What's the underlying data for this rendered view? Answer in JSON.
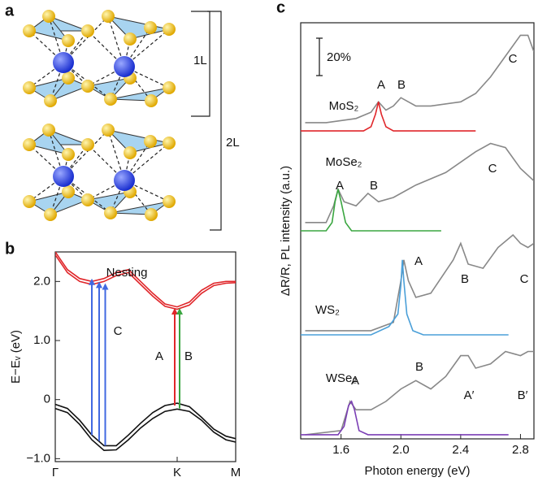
{
  "panel_a": {
    "label": "a",
    "layers": [
      "1L",
      "2L"
    ]
  },
  "chart_data": [
    {
      "type": "line",
      "label": "b",
      "ylabel": "E−Eᵥ (eV)",
      "xlim": [
        0,
        1.48
      ],
      "xticks": [
        {
          "value": 0,
          "label": "Γ"
        },
        {
          "value": 1,
          "label": "K"
        },
        {
          "value": 1.48,
          "label": "M"
        }
      ],
      "ylim": [
        -1.05,
        2.5
      ],
      "yticks": [
        {
          "value": -1,
          "label": "−1.0"
        },
        0,
        {
          "value": 1,
          "label": "1.0"
        },
        {
          "value": 2,
          "label": "2.0"
        }
      ],
      "x": [
        0,
        0.1,
        0.2,
        0.3,
        0.4,
        0.5,
        0.6,
        0.7,
        0.8,
        0.9,
        1.0,
        1.1,
        1.2,
        1.3,
        1.4,
        1.48
      ],
      "series": [
        {
          "color": "#e0262a",
          "values": [
            2.5,
            2.2,
            2.05,
            2.0,
            2.05,
            2.15,
            2.2,
            2.0,
            1.8,
            1.62,
            1.57,
            1.65,
            1.85,
            1.97,
            2.0,
            2.0
          ]
        },
        {
          "color": "#e0262a",
          "values": [
            2.45,
            2.15,
            2.0,
            1.95,
            2.0,
            2.1,
            2.15,
            1.95,
            1.75,
            1.58,
            1.53,
            1.6,
            1.8,
            1.93,
            1.97,
            1.98
          ]
        },
        {
          "color": "#111111",
          "values": [
            -0.08,
            -0.15,
            -0.35,
            -0.6,
            -0.78,
            -0.78,
            -0.6,
            -0.4,
            -0.22,
            -0.1,
            -0.06,
            -0.12,
            -0.3,
            -0.5,
            -0.62,
            -0.66
          ]
        },
        {
          "color": "#111111",
          "values": [
            -0.15,
            -0.22,
            -0.42,
            -0.68,
            -0.86,
            -0.85,
            -0.68,
            -0.48,
            -0.32,
            -0.2,
            -0.16,
            -0.2,
            -0.35,
            -0.55,
            -0.68,
            -0.72
          ]
        }
      ],
      "transitions": [
        {
          "color": "#4169e1",
          "x": 0.3,
          "y": [
            -0.6,
            2.05
          ]
        },
        {
          "color": "#4169e1",
          "x": 0.36,
          "y": [
            -0.7,
            2.0
          ]
        },
        {
          "color": "#4169e1",
          "x": 0.41,
          "y": [
            -0.78,
            1.97
          ]
        },
        {
          "color": "#e0262a",
          "x": 0.98,
          "y": [
            -0.1,
            1.55
          ]
        },
        {
          "color": "#3aa640",
          "x": 1.02,
          "y": [
            -0.15,
            1.55
          ]
        }
      ],
      "annotations": [
        "Nesting",
        "C",
        "A",
        "B"
      ]
    },
    {
      "type": "line",
      "label": "c",
      "xlabel": "Photon energy (eV)",
      "ylabel": "ΔR/R, PL intensity (a.u.)",
      "scale_bar": "20%",
      "xlim": [
        1.33,
        2.89
      ],
      "xticks": [
        1.6,
        {
          "value": 2,
          "label": "2.0"
        },
        2.4,
        2.8
      ],
      "ylim": [
        0,
        100
      ],
      "series": [
        {
          "name": "MoS₂",
          "labels": [
            "A",
            "B",
            "C"
          ],
          "color": "#888888",
          "x": [
            1.36,
            1.5,
            1.7,
            1.8,
            1.85,
            1.9,
            1.95,
            2.0,
            2.05,
            2.1,
            2.2,
            2.4,
            2.5,
            2.6,
            2.7,
            2.8,
            2.85,
            2.89
          ],
          "values": [
            76,
            76,
            77,
            78.5,
            81,
            79,
            80,
            82,
            81,
            80,
            80,
            81,
            83,
            87,
            92,
            97,
            97,
            93
          ]
        },
        {
          "color": "#e0262a",
          "x": [
            1.33,
            1.75,
            1.8,
            1.83,
            1.85,
            1.87,
            1.9,
            1.95,
            2.5
          ],
          "values": [
            74,
            74,
            75,
            78,
            81,
            78,
            75,
            74,
            74
          ]
        },
        {
          "name": "MoSe₂",
          "labels": [
            "A",
            "B",
            "C"
          ],
          "color": "#888888",
          "x": [
            1.36,
            1.5,
            1.55,
            1.58,
            1.62,
            1.7,
            1.78,
            1.85,
            1.95,
            2.1,
            2.3,
            2.5,
            2.6,
            2.7,
            2.8,
            2.89
          ],
          "values": [
            52,
            52,
            56,
            60,
            57,
            56,
            59,
            57,
            58,
            61,
            64,
            69,
            71,
            70,
            65,
            62
          ]
        },
        {
          "color": "#3aa640",
          "x": [
            1.33,
            1.5,
            1.54,
            1.56,
            1.58,
            1.6,
            1.63,
            1.67,
            2.27
          ],
          "values": [
            50,
            50,
            52,
            57,
            60,
            57,
            52,
            50,
            50
          ]
        },
        {
          "name": "WS₂",
          "labels": [
            "A",
            "B",
            "C"
          ],
          "color": "#888888",
          "x": [
            1.36,
            1.8,
            1.95,
            2.0,
            2.02,
            2.05,
            2.1,
            2.2,
            2.35,
            2.4,
            2.45,
            2.55,
            2.65,
            2.75,
            2.8,
            2.85,
            2.89
          ],
          "values": [
            26,
            26,
            28,
            38,
            43,
            38,
            34,
            35,
            43,
            47,
            42,
            41,
            46,
            49,
            47,
            46,
            47
          ]
        },
        {
          "color": "#4a9fd8",
          "x": [
            1.33,
            1.8,
            1.92,
            1.98,
            2.0,
            2.01,
            2.02,
            2.04,
            2.08,
            2.15,
            2.72
          ],
          "values": [
            25,
            25,
            27,
            30,
            37,
            43,
            38,
            30,
            26,
            25,
            25
          ]
        },
        {
          "name": "WSe₂",
          "labels": [
            "A",
            "B",
            "A′",
            "B′"
          ],
          "color": "#888888",
          "x": [
            1.36,
            1.6,
            1.66,
            1.7,
            1.8,
            1.9,
            2.0,
            2.1,
            2.2,
            2.3,
            2.4,
            2.45,
            2.5,
            2.6,
            2.7,
            2.8,
            2.85,
            2.89
          ],
          "values": [
            1,
            2,
            9,
            7,
            7,
            9,
            12,
            14,
            12,
            15,
            20,
            20,
            17,
            18,
            21,
            20,
            21,
            21
          ]
        },
        {
          "color": "#7b3fb5",
          "x": [
            1.33,
            1.58,
            1.62,
            1.65,
            1.67,
            1.69,
            1.72,
            1.78,
            2.72
          ],
          "values": [
            1,
            1,
            3,
            8,
            9,
            7,
            2,
            1,
            1
          ]
        }
      ]
    }
  ]
}
